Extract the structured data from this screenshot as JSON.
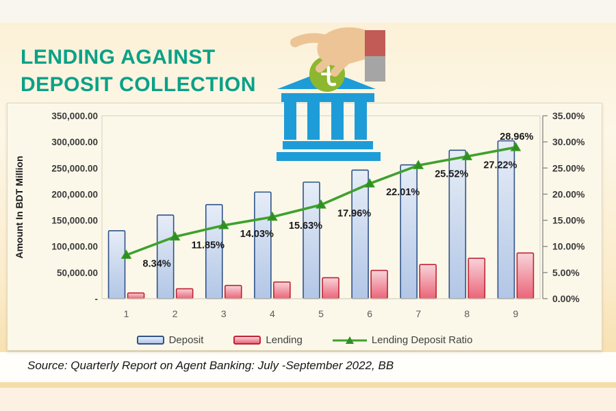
{
  "header": {
    "title_line1": "LENDING AGAINST",
    "title_line2": "DEPOSIT COLLECTION",
    "title_color": "#0aa187"
  },
  "icon": {
    "name": "hand-depositing-coin-into-bank",
    "bank_color": "#1e9cd7",
    "coin_color": "#8cb72f",
    "hand_color": "#ecc496",
    "sleeve_red": "#c25a56",
    "sleeve_gray": "#a5a5a5"
  },
  "chart_data": {
    "type": "bar",
    "subtype": "bar-line-combo",
    "categories": [
      "1",
      "2",
      "3",
      "4",
      "5",
      "6",
      "7",
      "8",
      "9"
    ],
    "series": [
      {
        "name": "Deposit",
        "type": "bar",
        "axis": "left",
        "border": "#2f5288",
        "fill_top": "#e6edf7",
        "fill_bottom": "#b2c6e6",
        "values": [
          130000,
          160000,
          180000,
          204000,
          223000,
          246000,
          256000,
          284000,
          302000
        ]
      },
      {
        "name": "Lending",
        "type": "bar",
        "axis": "left",
        "border": "#bf2333",
        "fill_top": "#f8d4da",
        "fill_bottom": "#ea6478",
        "values": [
          10842,
          18960,
          25254,
          31885,
          40051,
          54145,
          65331,
          77305,
          87459
        ]
      },
      {
        "name": "Lending Deposit Ratio",
        "type": "line",
        "axis": "right",
        "color": "#3ea12b",
        "marker_color": "#2f8f22",
        "values": [
          8.34,
          11.85,
          14.03,
          15.63,
          17.96,
          22.01,
          25.52,
          27.22,
          28.96
        ],
        "labels": [
          "8.34%",
          "11.85%",
          "14.03%",
          "15.63%",
          "17.96%",
          "22.01%",
          "25.52%",
          "27.22%",
          "28.96%"
        ]
      }
    ],
    "ylabel_left": "Amount In BDT Million",
    "y_left": {
      "min": 0,
      "max": 350000,
      "step": 50000,
      "ticks": [
        "350,000.00",
        "300,000.00",
        "250,000.00",
        "200,000.00",
        "150,000.00",
        "100,000.00",
        "50,000.00",
        "-"
      ]
    },
    "y_right": {
      "min": 0,
      "max": 35,
      "step": 5,
      "ticks": [
        "35.00%",
        "30.00%",
        "25.00%",
        "20.00%",
        "15.00%",
        "10.00%",
        "5.00%",
        "0.00%"
      ]
    },
    "legend_position": "bottom",
    "grid": false,
    "axis_text_color": "#3a3a3a",
    "xtick_color": "#595959",
    "plot_border_color": "#d5d0bd"
  },
  "source": {
    "text": "Source: Quarterly Report on Agent Banking: July -September 2022, BB"
  }
}
